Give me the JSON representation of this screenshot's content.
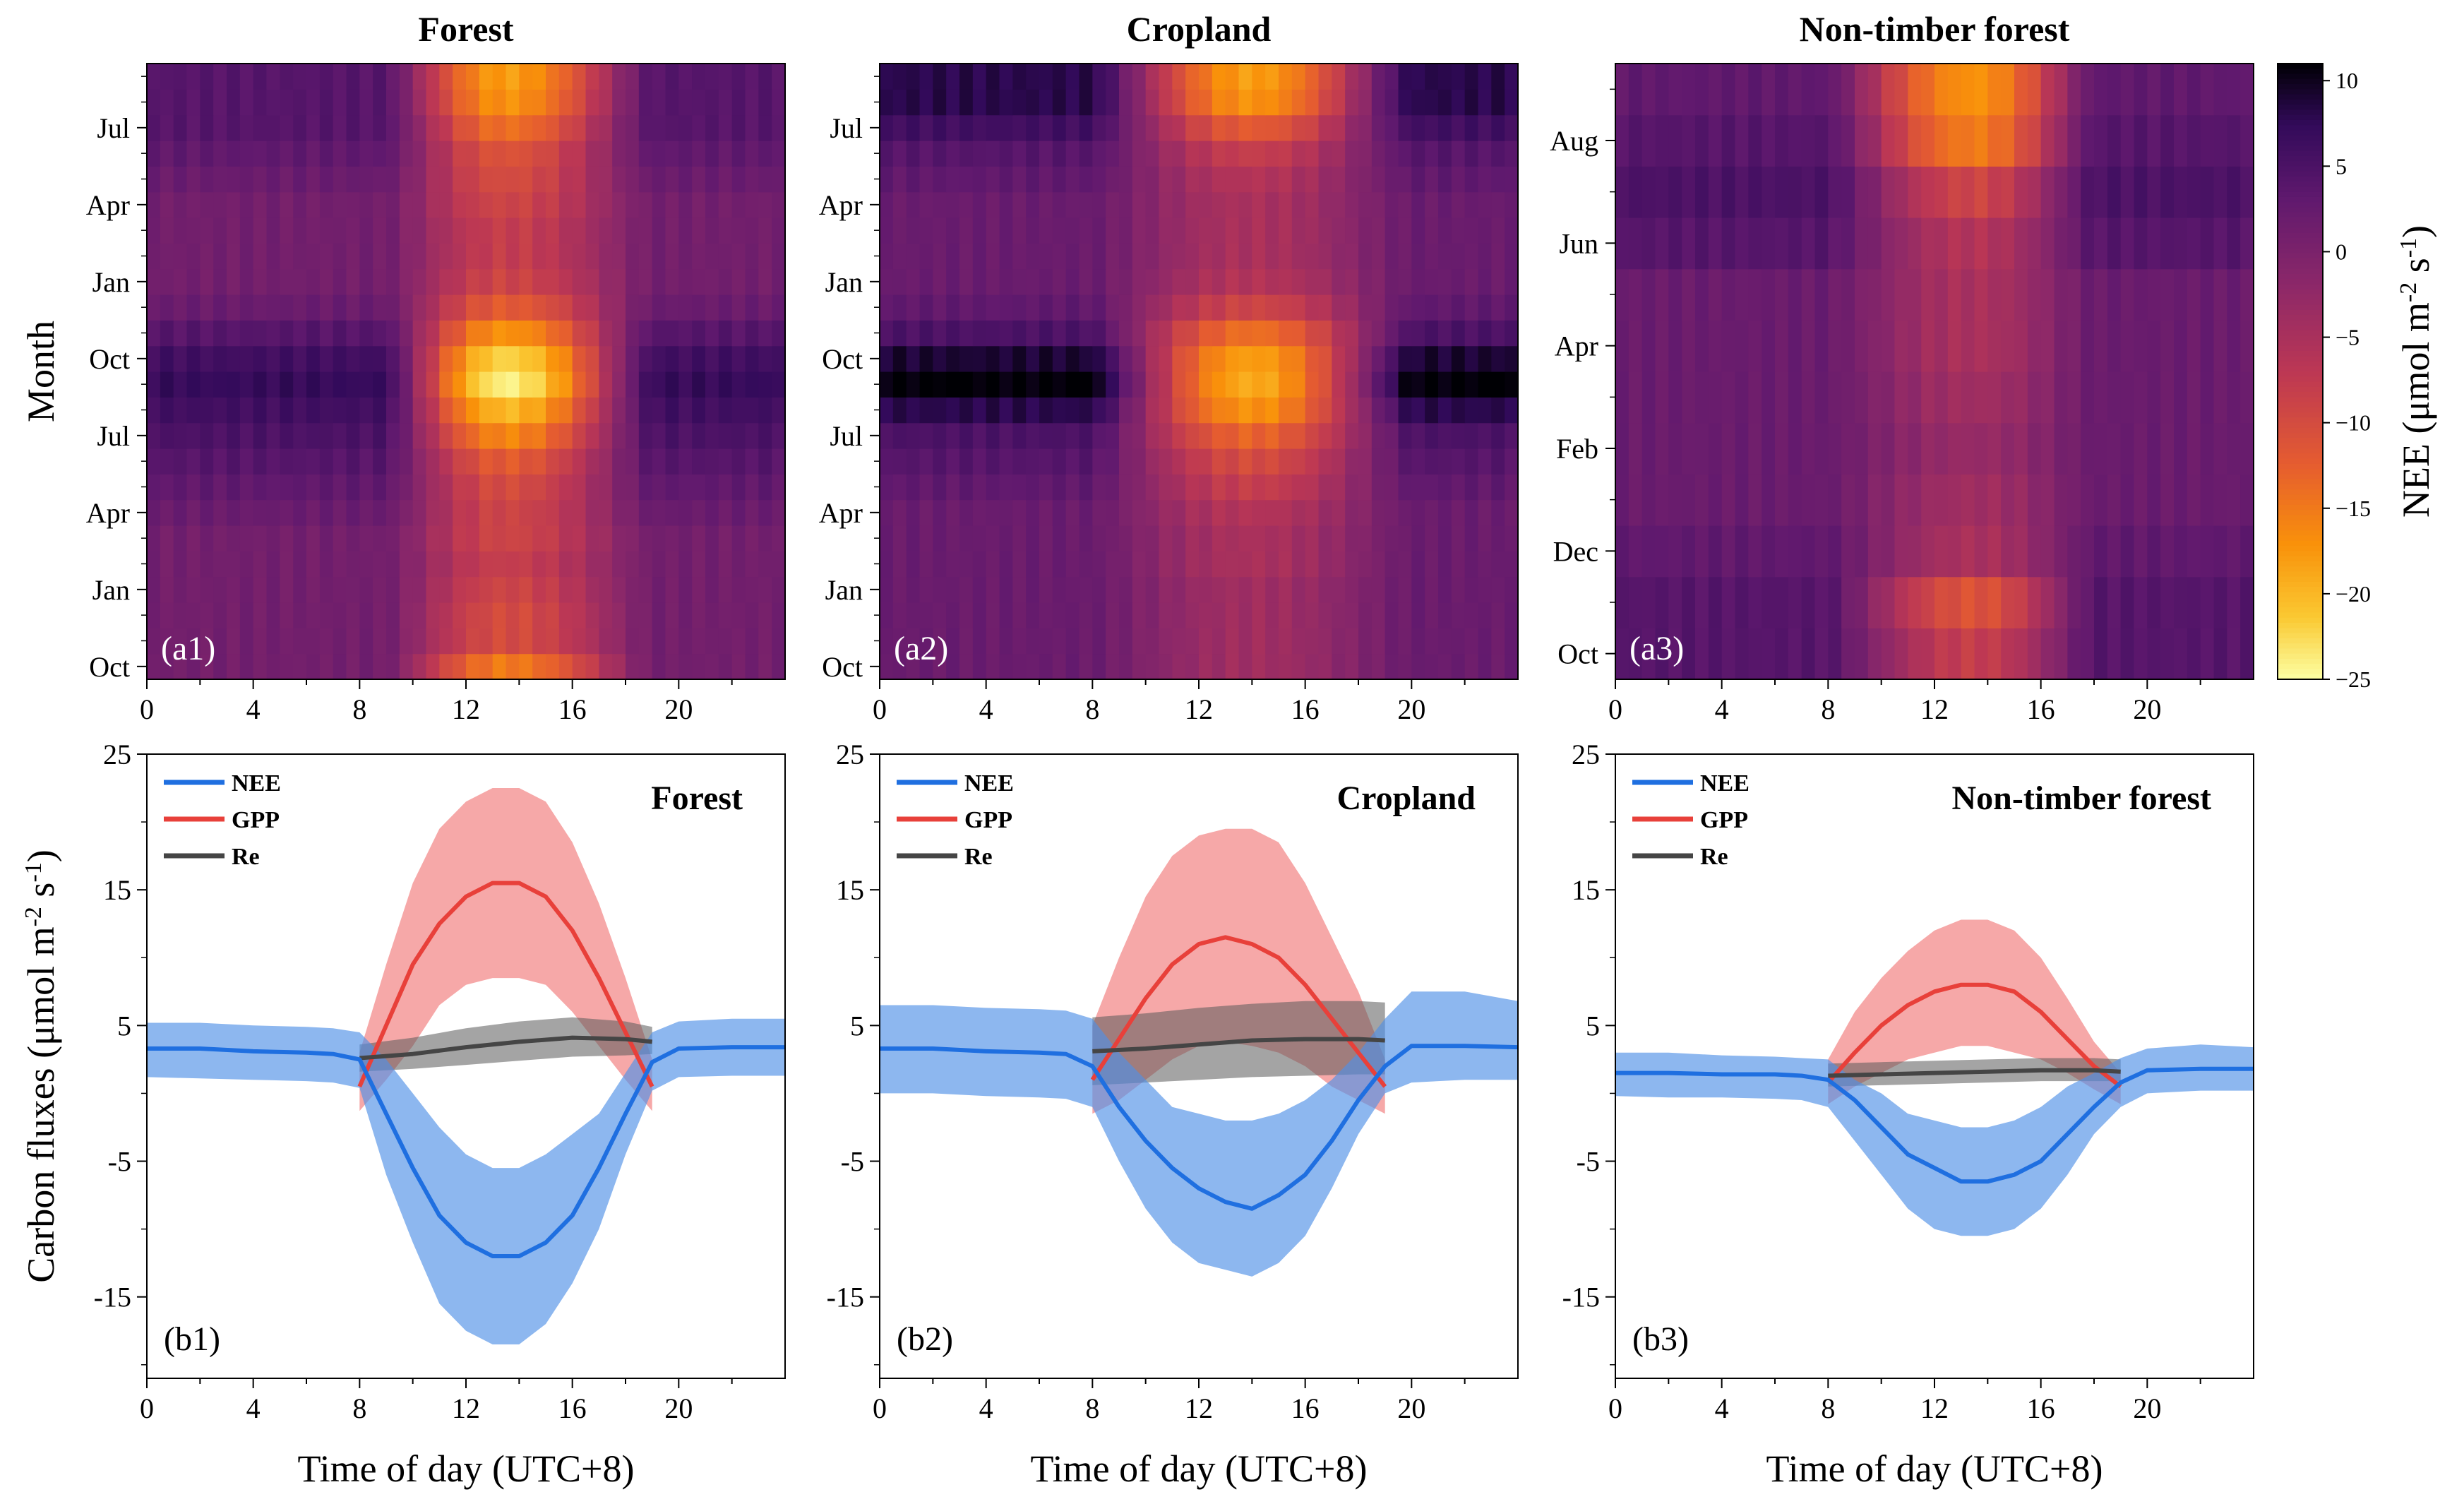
{
  "chart_data": [
    {
      "id": "a1",
      "type": "heatmap",
      "title": "Forest",
      "panel_label": "(a1)",
      "ylabel": "Month",
      "x_ticks": [
        "0",
        "4",
        "8",
        "12",
        "16",
        "20"
      ],
      "y_ticks": [
        "Oct",
        "Jan",
        "Apr",
        "Jul",
        "Oct",
        "Jan",
        "Apr",
        "Jul"
      ],
      "xlim": [
        0,
        24
      ],
      "n_rows": 24,
      "peak_nee_by_row": [
        -15,
        -10,
        -10,
        -9,
        -8,
        -9,
        -9,
        -10,
        -12,
        -16,
        -20,
        -24,
        -22,
        -17,
        -12,
        -9,
        -8,
        -8,
        -9,
        -10,
        -11,
        -14,
        -17,
        -18
      ],
      "night_nee_by_row": [
        1,
        1,
        1,
        1,
        1,
        1,
        2,
        3,
        4,
        5,
        6,
        7,
        6,
        4,
        2,
        1,
        1,
        1,
        1,
        2,
        3,
        4,
        4,
        4
      ],
      "day_start_hour": 9,
      "day_end_hour": 19,
      "peak_hour": 13.5
    },
    {
      "id": "a2",
      "type": "heatmap",
      "title": "Cropland",
      "panel_label": "(a2)",
      "x_ticks": [
        "0",
        "4",
        "8",
        "12",
        "16",
        "20"
      ],
      "y_ticks": [
        "Oct",
        "Jan",
        "Apr",
        "Jul",
        "Oct",
        "Jan",
        "Apr",
        "Jul"
      ],
      "xlim": [
        0,
        24
      ],
      "n_rows": 24,
      "peak_nee_by_row": [
        -4,
        -4,
        -4,
        -4,
        -5,
        -5,
        -6,
        -8,
        -10,
        -13,
        -17,
        -19,
        -18,
        -14,
        -9,
        -6,
        -5,
        -5,
        -5,
        -6,
        -8,
        -12,
        -17,
        -18
      ],
      "night_nee_by_row": [
        2,
        2,
        2,
        2,
        2,
        2,
        2,
        3,
        4,
        5,
        8,
        11,
        9,
        5,
        3,
        2,
        2,
        2,
        2,
        3,
        4,
        6,
        8,
        8
      ],
      "day_start_hour": 8,
      "day_end_hour": 20,
      "peak_hour": 14
    },
    {
      "id": "a3",
      "type": "heatmap",
      "title": "Non-timber forest",
      "panel_label": "(a3)",
      "x_ticks": [
        "0",
        "4",
        "8",
        "12",
        "16",
        "20"
      ],
      "y_ticks": [
        "Oct",
        "Dec",
        "Feb",
        "Apr",
        "Jun",
        "Aug"
      ],
      "xlim": [
        0,
        24
      ],
      "n_rows": 12,
      "peak_nee_by_row": [
        -8,
        -11,
        -5,
        -4,
        -3,
        -4,
        -5,
        -5,
        -6,
        -9,
        -15,
        -17
      ],
      "night_nee_by_row": [
        4,
        4,
        3,
        2,
        2,
        2,
        2,
        2,
        4,
        5,
        4,
        3
      ],
      "day_start_hour": 8,
      "day_end_hour": 18,
      "peak_hour": 13.5,
      "colorbar": {
        "label": "NEE (μmol m",
        "label_sup1": "-2",
        "label_mid": " s",
        "label_sup2": "-1",
        "label_end": ")",
        "ticks": [
          "10",
          "5",
          "0",
          "−5",
          "−10",
          "−15",
          "−20",
          "−25"
        ],
        "range": [
          -25,
          11
        ]
      }
    },
    {
      "id": "b1",
      "type": "line",
      "title": "Forest",
      "panel_label": "(b1)",
      "xlabel": "Time of day (UTC+8)",
      "ylabel_main": "Carbon fluxes (μmol m",
      "ylabel_sup1": "-2",
      "ylabel_mid": " s",
      "ylabel_sup2": "-1",
      "ylabel_end": ")",
      "xlim": [
        0,
        24
      ],
      "ylim": [
        -21,
        25
      ],
      "x_ticks": [
        "0",
        "4",
        "8",
        "12",
        "16",
        "20"
      ],
      "y_ticks": [
        "25",
        "15",
        "5",
        "-5",
        "-15"
      ],
      "legend": [
        "NEE",
        "GPP",
        "Re"
      ],
      "series": [
        {
          "name": "NEE",
          "x": [
            0,
            2,
            4,
            6,
            7,
            8,
            9,
            10,
            11,
            12,
            13,
            14,
            15,
            16,
            17,
            18,
            19,
            20,
            22,
            24
          ],
          "y": [
            3.3,
            3.3,
            3.1,
            3.0,
            2.9,
            2.5,
            -1.5,
            -5.5,
            -9,
            -11,
            -12,
            -12,
            -11,
            -9,
            -5.5,
            -1.5,
            2.3,
            3.3,
            3.4,
            3.4
          ],
          "lo": [
            1.2,
            1.1,
            1.0,
            0.9,
            0.8,
            0.4,
            -6,
            -11,
            -15.5,
            -17.5,
            -18.5,
            -18.5,
            -17,
            -14,
            -10,
            -4.5,
            0.2,
            1.2,
            1.3,
            1.3
          ],
          "hi": [
            5.2,
            5.2,
            5.0,
            4.9,
            4.8,
            4.5,
            2.5,
            0,
            -2.5,
            -4.5,
            -5.5,
            -5.5,
            -4.5,
            -3,
            -1.5,
            1.5,
            4.5,
            5.3,
            5.5,
            5.5
          ]
        },
        {
          "name": "GPP",
          "x": [
            8,
            9,
            10,
            11,
            12,
            13,
            14,
            15,
            16,
            17,
            18,
            19
          ],
          "y": [
            0.5,
            5,
            9.5,
            12.5,
            14.5,
            15.5,
            15.5,
            14.5,
            12,
            8.5,
            4.5,
            0.5
          ],
          "lo": [
            -1.3,
            1,
            3.5,
            6.5,
            8,
            8.5,
            8.5,
            8,
            6,
            3.5,
            1,
            -1.3
          ],
          "hi": [
            3,
            9.5,
            15.5,
            19.5,
            21.5,
            22.5,
            22.5,
            21.5,
            18.5,
            14,
            8.5,
            2.5
          ]
        },
        {
          "name": "Re",
          "x": [
            8,
            10,
            12,
            14,
            16,
            18,
            19
          ],
          "y": [
            2.6,
            2.9,
            3.4,
            3.8,
            4.1,
            4.0,
            3.8
          ],
          "lo": [
            1.6,
            1.8,
            2.1,
            2.4,
            2.7,
            2.8,
            2.9
          ],
          "hi": [
            3.6,
            4.1,
            4.8,
            5.3,
            5.6,
            5.3,
            4.9
          ]
        }
      ]
    },
    {
      "id": "b2",
      "type": "line",
      "title": "Cropland",
      "panel_label": "(b2)",
      "xlabel": "Time of day (UTC+8)",
      "xlim": [
        0,
        24
      ],
      "ylim": [
        -21,
        25
      ],
      "x_ticks": [
        "0",
        "4",
        "8",
        "12",
        "16",
        "20"
      ],
      "y_ticks": [
        "25",
        "15",
        "5",
        "-5",
        "-15"
      ],
      "legend": [
        "NEE",
        "GPP",
        "Re"
      ],
      "series": [
        {
          "name": "NEE",
          "x": [
            0,
            2,
            4,
            6,
            7,
            8,
            9,
            10,
            11,
            12,
            13,
            14,
            15,
            16,
            17,
            18,
            19,
            20,
            22,
            24
          ],
          "y": [
            3.3,
            3.3,
            3.1,
            3.0,
            2.9,
            2.0,
            -1,
            -3.5,
            -5.5,
            -7,
            -8,
            -8.5,
            -7.5,
            -6,
            -3.5,
            -0.5,
            2,
            3.5,
            3.5,
            3.4
          ],
          "lo": [
            0,
            0,
            -0.2,
            -0.3,
            -0.4,
            -1,
            -5,
            -8.5,
            -11,
            -12.5,
            -13,
            -13.5,
            -12.5,
            -10.5,
            -7,
            -3,
            0,
            0.8,
            1,
            1
          ],
          "hi": [
            6.5,
            6.5,
            6.3,
            6.2,
            6.1,
            5.5,
            3,
            1,
            -1,
            -1.5,
            -2,
            -2,
            -1.5,
            -0.5,
            1,
            3,
            5.5,
            7.5,
            7.5,
            6.8
          ]
        },
        {
          "name": "GPP",
          "x": [
            8,
            9,
            10,
            11,
            12,
            13,
            14,
            15,
            16,
            17,
            18,
            19
          ],
          "y": [
            1,
            4,
            7,
            9.5,
            11,
            11.5,
            11,
            10,
            8,
            5.5,
            3,
            0.5
          ],
          "lo": [
            -1.5,
            -0.5,
            1,
            2.5,
            3.5,
            3.8,
            3.5,
            3,
            2,
            0.5,
            -0.5,
            -1.5
          ],
          "hi": [
            5,
            10,
            14.5,
            17.5,
            19,
            19.5,
            19.5,
            18.5,
            15.5,
            11.5,
            7.5,
            2.5
          ]
        },
        {
          "name": "Re",
          "x": [
            8,
            10,
            12,
            14,
            16,
            18,
            19
          ],
          "y": [
            3.1,
            3.3,
            3.6,
            3.9,
            4.0,
            4.0,
            3.9
          ],
          "lo": [
            0.6,
            0.8,
            1.0,
            1.2,
            1.3,
            1.4,
            1.4
          ],
          "hi": [
            5.6,
            5.9,
            6.3,
            6.6,
            6.8,
            6.8,
            6.7
          ]
        }
      ]
    },
    {
      "id": "b3",
      "type": "line",
      "title": "Non-timber forest",
      "panel_label": "(b3)",
      "xlabel": "Time of day (UTC+8)",
      "xlim": [
        0,
        24
      ],
      "ylim": [
        -21,
        25
      ],
      "x_ticks": [
        "0",
        "4",
        "8",
        "12",
        "16",
        "20"
      ],
      "y_ticks": [
        "25",
        "15",
        "5",
        "-5",
        "-15"
      ],
      "legend": [
        "NEE",
        "GPP",
        "Re"
      ],
      "series": [
        {
          "name": "NEE",
          "x": [
            0,
            2,
            4,
            6,
            7,
            8,
            9,
            10,
            11,
            12,
            13,
            14,
            15,
            16,
            17,
            18,
            19,
            20,
            22,
            24
          ],
          "y": [
            1.5,
            1.5,
            1.4,
            1.4,
            1.3,
            1.0,
            -0.5,
            -2.5,
            -4.5,
            -5.5,
            -6.5,
            -6.5,
            -6,
            -5,
            -3,
            -1,
            0.8,
            1.7,
            1.8,
            1.8
          ],
          "lo": [
            -0.2,
            -0.3,
            -0.3,
            -0.4,
            -0.5,
            -1,
            -3.5,
            -6,
            -8.5,
            -10,
            -10.5,
            -10.5,
            -10,
            -8.5,
            -6,
            -3,
            -1,
            0,
            0.2,
            0.2
          ],
          "hi": [
            3,
            3,
            2.8,
            2.7,
            2.6,
            2.5,
            1,
            0,
            -1.5,
            -2,
            -2.5,
            -2.5,
            -2,
            -1,
            0.5,
            1.5,
            2.6,
            3.3,
            3.6,
            3.4
          ]
        },
        {
          "name": "GPP",
          "x": [
            8,
            9,
            10,
            11,
            12,
            13,
            14,
            15,
            16,
            17,
            18,
            19
          ],
          "y": [
            0.8,
            3,
            5,
            6.5,
            7.5,
            8,
            8,
            7.5,
            6,
            4,
            2,
            0.5
          ],
          "lo": [
            -0.8,
            0.5,
            1.5,
            2.5,
            3,
            3.5,
            3.5,
            3,
            2.5,
            1.5,
            0.3,
            -0.8
          ],
          "hi": [
            2.5,
            6,
            8.5,
            10.5,
            12,
            12.8,
            12.8,
            12,
            10,
            7,
            3.8,
            1.5
          ]
        },
        {
          "name": "Re",
          "x": [
            8,
            10,
            12,
            14,
            16,
            18,
            19
          ],
          "y": [
            1.3,
            1.4,
            1.5,
            1.6,
            1.7,
            1.7,
            1.6
          ],
          "lo": [
            0.5,
            0.6,
            0.7,
            0.8,
            0.9,
            0.9,
            0.9
          ],
          "hi": [
            2.2,
            2.3,
            2.4,
            2.5,
            2.6,
            2.6,
            2.5
          ]
        }
      ]
    }
  ]
}
